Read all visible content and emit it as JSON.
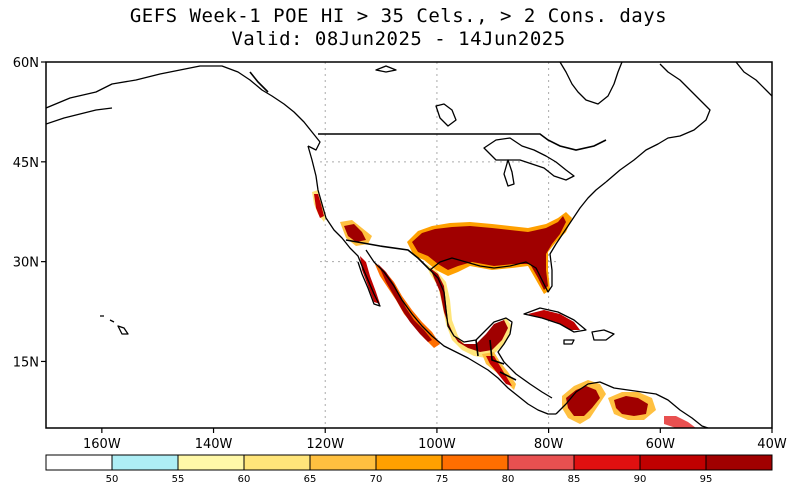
{
  "title": {
    "line1": "GEFS Week-1 POE HI > 35 Cels., > 2 Cons. days",
    "line2": "Valid: 08Jun2025 - 14Jun2025"
  },
  "map": {
    "lon_range": [
      -170,
      -40
    ],
    "lat_range": [
      5,
      60
    ],
    "lat_ticks": [
      {
        "value": 60,
        "label": "60N"
      },
      {
        "value": 45,
        "label": "45N"
      },
      {
        "value": 30,
        "label": "30N"
      },
      {
        "value": 15,
        "label": "15N"
      }
    ],
    "lon_ticks": [
      {
        "value": -160,
        "label": "160W"
      },
      {
        "value": -140,
        "label": "140W"
      },
      {
        "value": -120,
        "label": "120W"
      },
      {
        "value": -100,
        "label": "100W"
      },
      {
        "value": -80,
        "label": "80W"
      },
      {
        "value": -60,
        "label": "60W"
      },
      {
        "value": -40,
        "label": "40W"
      }
    ],
    "gridlines": {
      "lons": [
        -120,
        -100,
        -80
      ],
      "lats": [
        45,
        30
      ]
    }
  },
  "colorbar": {
    "labels": [
      "50",
      "55",
      "60",
      "65",
      "70",
      "75",
      "80",
      "85",
      "90",
      "95"
    ],
    "colors": [
      "#ffffff",
      "#aeeef5",
      "#fff8a8",
      "#ffe57a",
      "#ffc040",
      "#ffa000",
      "#ff6e00",
      "#e85050",
      "#e01010",
      "#c00000",
      "#a00000"
    ]
  },
  "colors": {
    "p90": "#e01010",
    "p95": "#c00000",
    "p100": "#a00000",
    "p75": "#ffa000",
    "p65": "#ffe57a"
  }
}
